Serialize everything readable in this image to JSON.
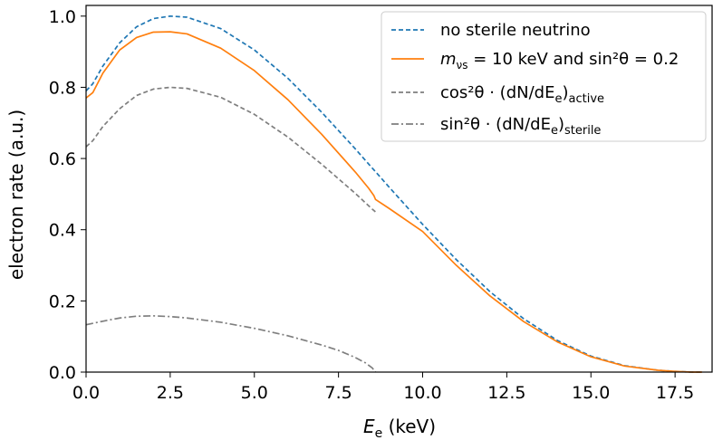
{
  "chart_data": {
    "type": "line",
    "xlabel_main": "E",
    "xlabel_sub": "e",
    "xlabel_unit": " (keV)",
    "ylabel": "electron rate (a.u.)",
    "xlim": [
      0,
      18.6
    ],
    "ylim": [
      0,
      1.03
    ],
    "xticks": [
      0,
      2.5,
      5,
      7.5,
      10,
      12.5,
      15,
      17.5
    ],
    "xtick_labels": [
      "0.0",
      "2.5",
      "5.0",
      "7.5",
      "10.0",
      "12.5",
      "15.0",
      "17.5"
    ],
    "yticks": [
      0,
      0.2,
      0.4,
      0.6,
      0.8,
      1.0
    ],
    "ytick_labels": [
      "0.0",
      "0.2",
      "0.4",
      "0.6",
      "0.8",
      "1.0"
    ],
    "grid": false,
    "legend_position": "top-right",
    "series": [
      {
        "key": "no_sterile",
        "name": "no sterile neutrino",
        "color": "#1f77b4",
        "dash": "dashed",
        "x": [
          0,
          0.2,
          0.5,
          1.0,
          1.5,
          2.0,
          2.5,
          3.0,
          4.0,
          5.0,
          6.0,
          7.0,
          8.0,
          9.0,
          10.0,
          11.0,
          12.0,
          13.0,
          14.0,
          15.0,
          16.0,
          17.0,
          17.5,
          18.0,
          18.3
        ],
        "y": [
          0.79,
          0.81,
          0.86,
          0.925,
          0.97,
          0.993,
          1.0,
          0.997,
          0.965,
          0.905,
          0.825,
          0.73,
          0.627,
          0.52,
          0.415,
          0.316,
          0.226,
          0.15,
          0.089,
          0.045,
          0.018,
          0.005,
          0.002,
          0.0,
          0.0
        ]
      },
      {
        "key": "sterile_10kev",
        "name_main": "m",
        "name_sub": "νs",
        "name_rest": " = 10 keV and sin²θ = 0.2",
        "color": "#ff7f0e",
        "dash": "solid",
        "x": [
          0,
          0.2,
          0.5,
          1.0,
          1.5,
          2.0,
          2.5,
          3.0,
          4.0,
          5.0,
          6.0,
          7.0,
          8.0,
          8.4,
          8.55,
          8.6,
          9.0,
          10.0,
          11.0,
          12.0,
          13.0,
          14.0,
          15.0,
          16.0,
          17.0,
          17.5,
          18.0,
          18.3
        ],
        "y": [
          0.77,
          0.785,
          0.84,
          0.905,
          0.94,
          0.955,
          0.956,
          0.95,
          0.91,
          0.847,
          0.765,
          0.668,
          0.562,
          0.516,
          0.496,
          0.485,
          0.46,
          0.395,
          0.3,
          0.214,
          0.142,
          0.085,
          0.043,
          0.017,
          0.005,
          0.002,
          0.0,
          0.0
        ]
      },
      {
        "key": "active",
        "name_main": "cos²θ · (dN/dE",
        "name_sub": "e",
        "name_close": ")",
        "name_sub2": "active",
        "color": "#7f7f7f",
        "dash": "dashed",
        "x": [
          0,
          0.2,
          0.5,
          1.0,
          1.5,
          2.0,
          2.5,
          3.0,
          4.0,
          5.0,
          6.0,
          7.0,
          8.0,
          8.5,
          8.6
        ],
        "y": [
          0.633,
          0.65,
          0.69,
          0.74,
          0.777,
          0.795,
          0.8,
          0.797,
          0.772,
          0.724,
          0.66,
          0.584,
          0.502,
          0.458,
          0.45
        ]
      },
      {
        "key": "sterile",
        "name_main": "sin²θ · (dN/dE",
        "name_sub": "e",
        "name_close": ")",
        "name_sub2": "sterile",
        "color": "#7f7f7f",
        "dash": "dashdot",
        "x": [
          0,
          0.5,
          1.0,
          1.5,
          2.0,
          2.5,
          3.0,
          4.0,
          5.0,
          6.0,
          7.0,
          7.5,
          8.0,
          8.3,
          8.5,
          8.6
        ],
        "y": [
          0.133,
          0.143,
          0.152,
          0.157,
          0.158,
          0.156,
          0.152,
          0.14,
          0.123,
          0.102,
          0.076,
          0.061,
          0.041,
          0.026,
          0.012,
          0.0
        ]
      }
    ]
  }
}
